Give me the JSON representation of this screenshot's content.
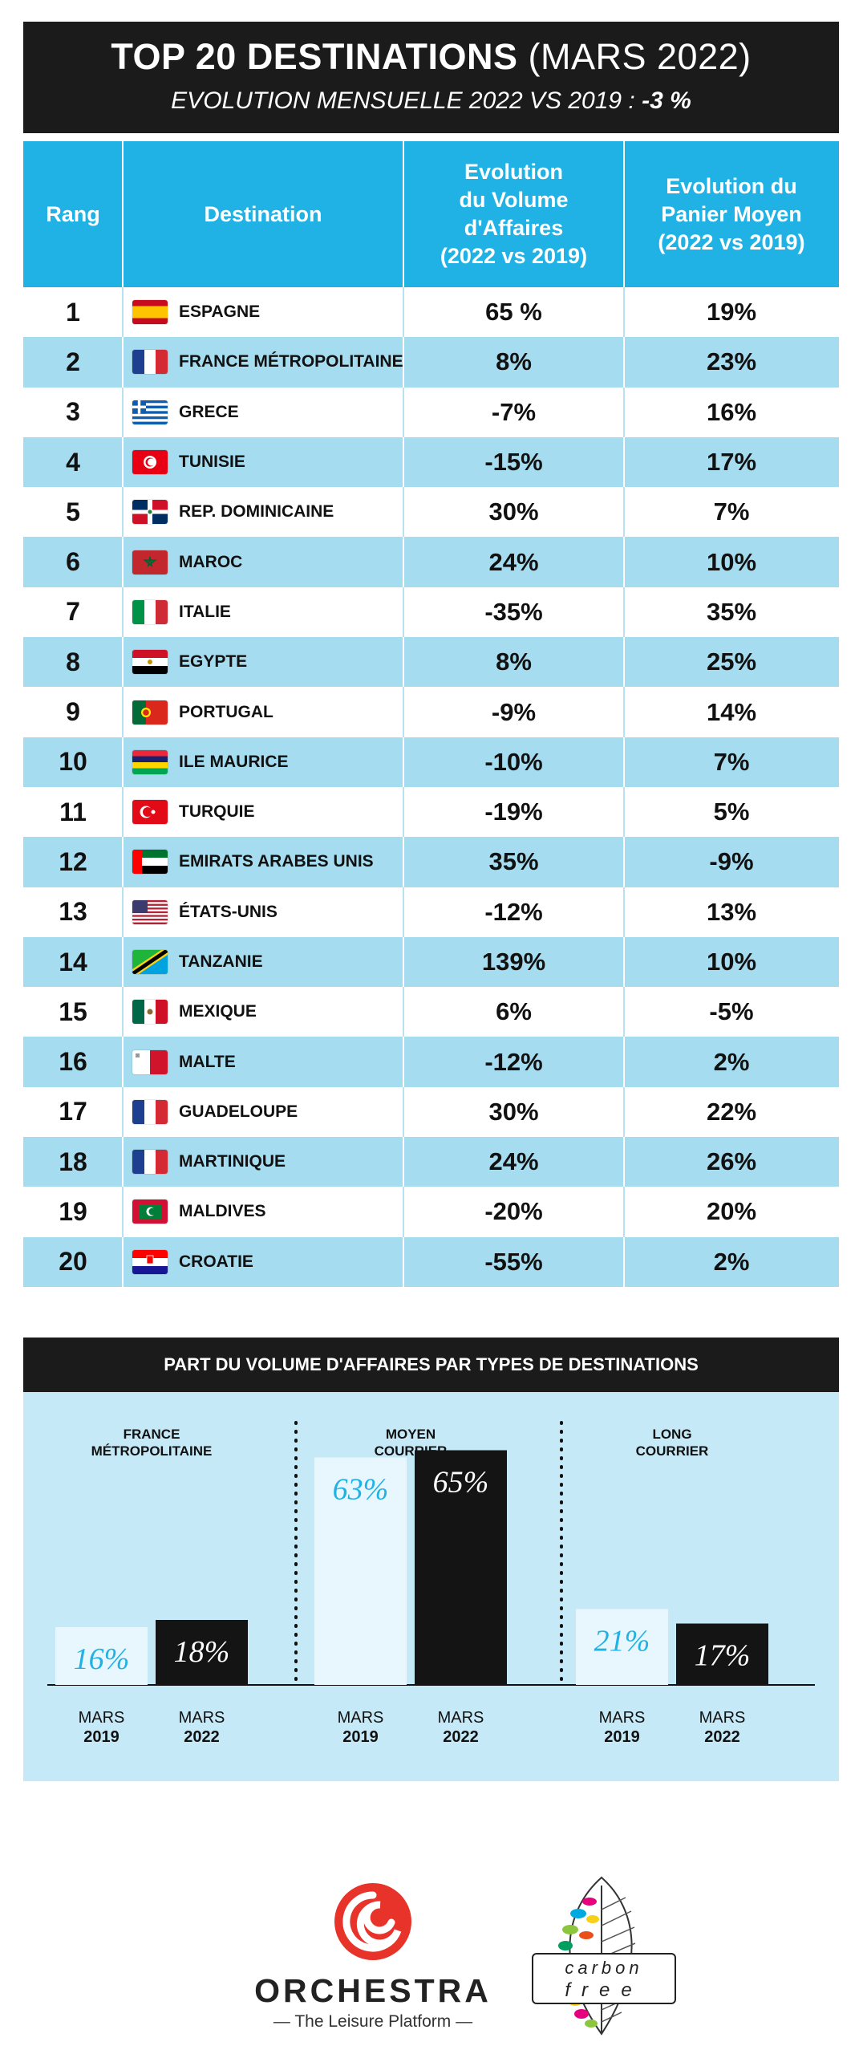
{
  "header": {
    "title_bold": "TOP 20 DESTINATIONS",
    "title_normal": "(MARS 2022)",
    "subtitle": "EVOLUTION MENSUELLE 2022 VS 2019 :",
    "subtitle_value": "-3 %"
  },
  "table": {
    "headers": {
      "rank": "Rang",
      "destination": "Destination",
      "volume": [
        "Evolution",
        "du Volume",
        "d'Affaires",
        "(2022 vs 2019)"
      ],
      "basket": [
        "Evolution du",
        "Panier Moyen",
        "(2022 vs 2019)"
      ]
    },
    "rows": [
      {
        "rank": "1",
        "destination": "ESPAGNE",
        "volume": "65 %",
        "basket": "19%",
        "flag": "spain-flag-icon"
      },
      {
        "rank": "2",
        "destination": "FRANCE MÉTROPOLITAINE",
        "volume": "8%",
        "basket": "23%",
        "flag": "france-flag-icon"
      },
      {
        "rank": "3",
        "destination": "GRECE",
        "volume": "-7%",
        "basket": "16%",
        "flag": "greece-flag-icon"
      },
      {
        "rank": "4",
        "destination": "TUNISIE",
        "volume": "-15%",
        "basket": "17%",
        "flag": "tunisia-flag-icon"
      },
      {
        "rank": "5",
        "destination": "REP. DOMINICAINE",
        "volume": "30%",
        "basket": "7%",
        "flag": "dominican-republic-flag-icon"
      },
      {
        "rank": "6",
        "destination": "MAROC",
        "volume": "24%",
        "basket": "10%",
        "flag": "morocco-flag-icon"
      },
      {
        "rank": "7",
        "destination": "ITALIE",
        "volume": "-35%",
        "basket": "35%",
        "flag": "italy-flag-icon"
      },
      {
        "rank": "8",
        "destination": "EGYPTE",
        "volume": "8%",
        "basket": "25%",
        "flag": "egypt-flag-icon"
      },
      {
        "rank": "9",
        "destination": "PORTUGAL",
        "volume": "-9%",
        "basket": "14%",
        "flag": "portugal-flag-icon"
      },
      {
        "rank": "10",
        "destination": "ILE MAURICE",
        "volume": "-10%",
        "basket": "7%",
        "flag": "mauritius-flag-icon"
      },
      {
        "rank": "11",
        "destination": "TURQUIE",
        "volume": "-19%",
        "basket": "5%",
        "flag": "turkey-flag-icon"
      },
      {
        "rank": "12",
        "destination": "EMIRATS ARABES UNIS",
        "volume": "35%",
        "basket": "-9%",
        "flag": "uae-flag-icon"
      },
      {
        "rank": "13",
        "destination": "ÉTATS-UNIS",
        "volume": "-12%",
        "basket": "13%",
        "flag": "usa-flag-icon"
      },
      {
        "rank": "14",
        "destination": "TANZANIE",
        "volume": "139%",
        "basket": "10%",
        "flag": "tanzania-flag-icon"
      },
      {
        "rank": "15",
        "destination": "MEXIQUE",
        "volume": "6%",
        "basket": "-5%",
        "flag": "mexico-flag-icon"
      },
      {
        "rank": "16",
        "destination": "MALTE",
        "volume": "-12%",
        "basket": "2%",
        "flag": "malta-flag-icon"
      },
      {
        "rank": "17",
        "destination": "GUADELOUPE",
        "volume": "30%",
        "basket": "22%",
        "flag": "france-flag-icon"
      },
      {
        "rank": "18",
        "destination": "MARTINIQUE",
        "volume": "24%",
        "basket": "26%",
        "flag": "france-flag-icon"
      },
      {
        "rank": "19",
        "destination": "MALDIVES",
        "volume": "-20%",
        "basket": "20%",
        "flag": "maldives-flag-icon"
      },
      {
        "rank": "20",
        "destination": "CROATIE",
        "volume": "-55%",
        "basket": "2%",
        "flag": "croatia-flag-icon"
      }
    ]
  },
  "chart_section": {
    "title": "PART DU VOLUME D'AFFAIRES PAR TYPES DE DESTINATIONS"
  },
  "chart_data": {
    "type": "bar",
    "title": "PART DU VOLUME D'AFFAIRES PAR TYPES DE DESTINATIONS",
    "groups": [
      {
        "label": [
          "FRANCE",
          "MÉTROPOLITAINE"
        ],
        "values": [
          16,
          18
        ]
      },
      {
        "label": [
          "MOYEN",
          "COURRIER"
        ],
        "values": [
          63,
          65
        ]
      },
      {
        "label": [
          "LONG",
          "COURRIER"
        ],
        "values": [
          21,
          17
        ]
      }
    ],
    "series": [
      {
        "name": [
          "MARS",
          "2019"
        ],
        "color": "#e8f7fd",
        "label_color": "#20b2e4"
      },
      {
        "name": [
          "MARS",
          "2022"
        ],
        "color": "#141414",
        "label_color": "#ffffff"
      }
    ],
    "unit": "%",
    "ylim": [
      0,
      100
    ]
  },
  "footer": {
    "orchestra_name": "ORCHESTRA",
    "orchestra_tagline": "— The Leisure Platform —",
    "carbon_top": "carbon",
    "carbon_bottom": "free"
  },
  "colors": {
    "header_bg": "#1b1b1b",
    "table_header_bg": "#20b2e4",
    "row_alt_bg": "#a6dcef",
    "chart_bg": "#c5e9f7",
    "orchestra_red": "#e8332a"
  }
}
